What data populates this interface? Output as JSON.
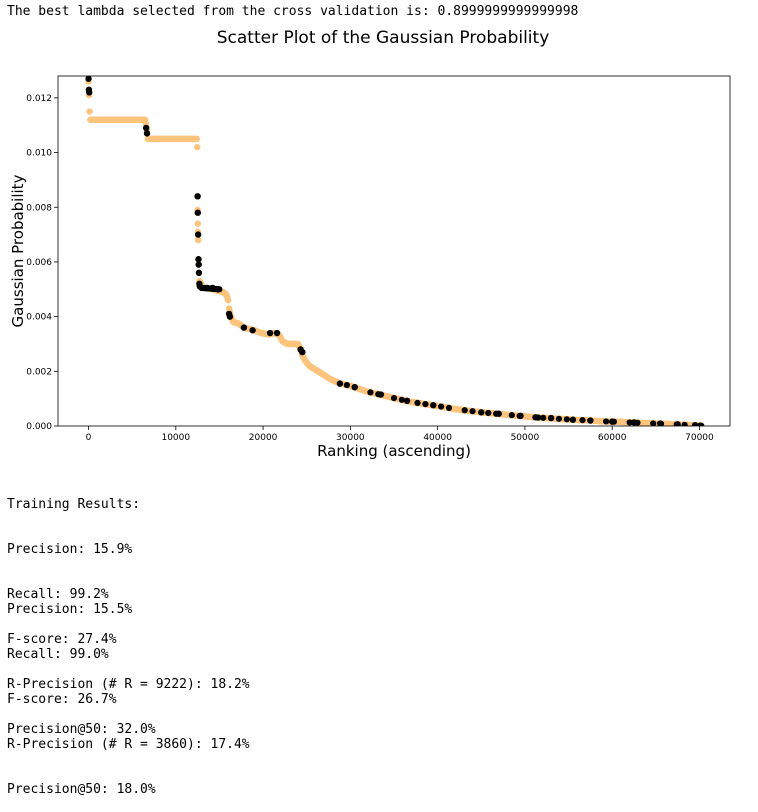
{
  "header": {
    "text": "The best lambda selected from the cross validation is: 0.8999999999999998"
  },
  "chart_data": {
    "type": "scatter",
    "title": "Scatter Plot of the Gaussian Probability",
    "xlabel": "Ranking (ascending)",
    "ylabel": "Gaussian Probability",
    "xlim": [
      -3500,
      73500
    ],
    "ylim": [
      0,
      0.0128
    ],
    "xticks": [
      0,
      10000,
      20000,
      30000,
      40000,
      50000,
      60000,
      70000
    ],
    "xtick_labels": [
      "0",
      "10000",
      "20000",
      "30000",
      "40000",
      "50000",
      "60000",
      "70000"
    ],
    "yticks": [
      0,
      0.002,
      0.004,
      0.006,
      0.008,
      0.01,
      0.012
    ],
    "ytick_labels": [
      "0.000",
      "0.002",
      "0.004",
      "0.006",
      "0.008",
      "0.010",
      "0.012"
    ],
    "grid": false,
    "colors": {
      "negative": "#fcc47c",
      "positive": "#000000"
    },
    "series": [
      {
        "role": "negative",
        "points": [
          [
            0,
            0.0126
          ],
          [
            60,
            0.0121
          ],
          [
            120,
            0.0115
          ],
          [
            200,
            0.0112
          ],
          [
            1200,
            0.0112
          ],
          [
            2400,
            0.0112
          ],
          [
            3600,
            0.0112
          ],
          [
            4800,
            0.0112
          ],
          [
            6000,
            0.0112
          ],
          [
            6500,
            0.0112
          ],
          [
            6700,
            0.0108
          ],
          [
            6800,
            0.0105
          ],
          [
            7000,
            0.0105
          ],
          [
            8200,
            0.0105
          ],
          [
            9400,
            0.0105
          ],
          [
            10600,
            0.0105
          ],
          [
            11800,
            0.0105
          ],
          [
            12400,
            0.0105
          ],
          [
            12450,
            0.0102
          ],
          [
            12480,
            0.0084
          ],
          [
            12500,
            0.0079
          ],
          [
            12520,
            0.0074
          ],
          [
            12540,
            0.0071
          ],
          [
            12560,
            0.0068
          ],
          [
            12600,
            0.0061
          ],
          [
            12650,
            0.0056
          ],
          [
            12700,
            0.0053
          ],
          [
            13200,
            0.00505
          ],
          [
            14000,
            0.00502
          ],
          [
            14800,
            0.00495
          ],
          [
            15400,
            0.0049
          ],
          [
            15800,
            0.0048
          ],
          [
            16000,
            0.0046
          ],
          [
            16100,
            0.0043
          ],
          [
            16300,
            0.004
          ],
          [
            16600,
            0.0038
          ],
          [
            17200,
            0.00375
          ],
          [
            17800,
            0.0036
          ],
          [
            18400,
            0.00355
          ],
          [
            19000,
            0.0035
          ],
          [
            19800,
            0.0034
          ],
          [
            20600,
            0.00335
          ],
          [
            21400,
            0.0034
          ],
          [
            21900,
            0.0033
          ],
          [
            22200,
            0.0031
          ],
          [
            22800,
            0.003
          ],
          [
            23400,
            0.003
          ],
          [
            24000,
            0.003
          ],
          [
            24300,
            0.0028
          ],
          [
            24500,
            0.0026
          ],
          [
            24800,
            0.0024
          ],
          [
            25300,
            0.0022
          ],
          [
            25800,
            0.0021
          ],
          [
            26300,
            0.002
          ],
          [
            26800,
            0.0019
          ],
          [
            27300,
            0.0018
          ],
          [
            27800,
            0.0017
          ],
          [
            28500,
            0.0016
          ],
          [
            29300,
            0.00152
          ],
          [
            30200,
            0.00145
          ],
          [
            31100,
            0.00135
          ],
          [
            32000,
            0.00125
          ],
          [
            33000,
            0.00118
          ],
          [
            34000,
            0.0011
          ],
          [
            35000,
            0.00102
          ],
          [
            36000,
            0.00095
          ],
          [
            37000,
            0.00088
          ],
          [
            38000,
            0.00083
          ],
          [
            39000,
            0.00078
          ],
          [
            40000,
            0.00073
          ],
          [
            41000,
            0.00068
          ],
          [
            42000,
            0.00062
          ],
          [
            43000,
            0.00058
          ],
          [
            44000,
            0.00054
          ],
          [
            45000,
            0.0005
          ],
          [
            46000,
            0.00047
          ],
          [
            47000,
            0.00044
          ],
          [
            48000,
            0.00041
          ],
          [
            49000,
            0.00038
          ],
          [
            50000,
            0.00035
          ],
          [
            51000,
            0.00032
          ],
          [
            52000,
            0.0003
          ],
          [
            53000,
            0.00028
          ],
          [
            54000,
            0.00026
          ],
          [
            55000,
            0.00024
          ],
          [
            56000,
            0.00022
          ],
          [
            57000,
            0.00021
          ],
          [
            58000,
            0.00019
          ],
          [
            59000,
            0.00017
          ],
          [
            60000,
            0.00016
          ],
          [
            61000,
            0.00015
          ],
          [
            62000,
            0.00013
          ],
          [
            63000,
            0.00012
          ],
          [
            64000,
            0.0001
          ],
          [
            65000,
            9e-05
          ],
          [
            66000,
            8e-05
          ],
          [
            67000,
            6e-05
          ],
          [
            68000,
            5e-05
          ],
          [
            69000,
            3e-05
          ],
          [
            70000,
            2e-05
          ]
        ]
      },
      {
        "role": "positive",
        "points": [
          [
            0,
            0.0127
          ],
          [
            40,
            0.0123
          ],
          [
            80,
            0.0122
          ],
          [
            6600,
            0.0109
          ],
          [
            6700,
            0.0107
          ],
          [
            12500,
            0.0084
          ],
          [
            12520,
            0.0078
          ],
          [
            12560,
            0.007
          ],
          [
            12600,
            0.0061
          ],
          [
            12620,
            0.0059
          ],
          [
            12650,
            0.0056
          ],
          [
            12700,
            0.0052
          ],
          [
            12750,
            0.0051
          ],
          [
            13000,
            0.00505
          ],
          [
            13600,
            0.00505
          ],
          [
            14200,
            0.00505
          ],
          [
            14800,
            0.005
          ],
          [
            16100,
            0.0041
          ],
          [
            16200,
            0.004
          ],
          [
            17800,
            0.0036
          ],
          [
            18800,
            0.0035
          ],
          [
            20800,
            0.0034
          ],
          [
            21600,
            0.0034
          ],
          [
            24300,
            0.0028
          ],
          [
            24500,
            0.0027
          ],
          [
            28800,
            0.00155
          ],
          [
            30500,
            0.00142
          ],
          [
            33500,
            0.00115
          ],
          [
            36500,
            0.00092
          ],
          [
            39500,
            0.00076
          ],
          [
            45000,
            0.0005
          ],
          [
            47000,
            0.00045
          ],
          [
            49500,
            0.00037
          ],
          [
            51500,
            0.00031
          ],
          [
            53000,
            0.00029
          ],
          [
            55500,
            0.00023
          ],
          [
            57500,
            0.0002
          ],
          [
            60000,
            0.00016
          ],
          [
            62500,
            0.00013
          ],
          [
            65500,
            9e-05
          ],
          [
            67500,
            6e-05
          ],
          [
            69500,
            3e-05
          ],
          [
            70200,
            1e-05
          ]
        ]
      }
    ]
  },
  "training": {
    "heading": "Training Results:",
    "precision": "Precision: 15.9%",
    "recall": "Recall: 99.2%",
    "fscore": "F-score: 27.4%",
    "rprecision": "R-Precision (# R = 9222): 18.2%",
    "precision_at_50": "Precision@50: 32.0%"
  },
  "testing": {
    "precision": "Precision: 15.5%",
    "recall": "Recall: 99.0%",
    "fscore": "F-score: 26.7%",
    "rprecision": "R-Precision (# R = 3860): 17.4%",
    "precision_at_50": "Precision@50: 18.0%"
  }
}
